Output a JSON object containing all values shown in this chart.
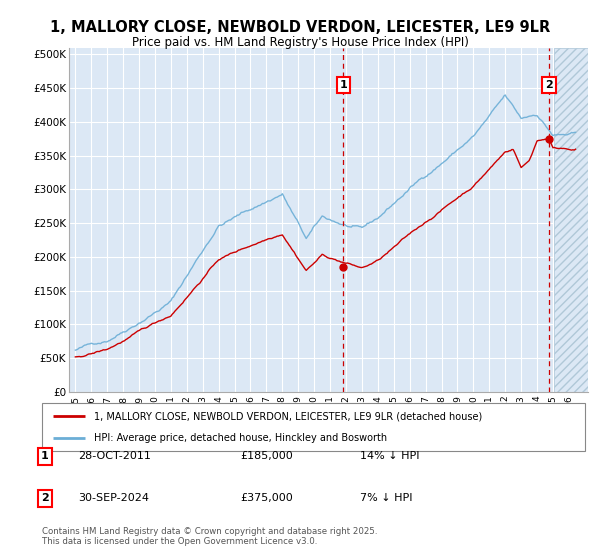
{
  "title_line1": "1, MALLORY CLOSE, NEWBOLD VERDON, LEICESTER, LE9 9LR",
  "title_line2": "Price paid vs. HM Land Registry's House Price Index (HPI)",
  "ylabel_ticks": [
    "£0",
    "£50K",
    "£100K",
    "£150K",
    "£200K",
    "£250K",
    "£300K",
    "£350K",
    "£400K",
    "£450K",
    "£500K"
  ],
  "ytick_values": [
    0,
    50000,
    100000,
    150000,
    200000,
    250000,
    300000,
    350000,
    400000,
    450000,
    500000
  ],
  "ylim": [
    0,
    510000
  ],
  "xlim_start": 1994.6,
  "xlim_end": 2027.2,
  "hpi_color": "#6baed6",
  "price_color": "#cc0000",
  "dashed_line_color": "#cc0000",
  "marker1_x": 2011.83,
  "marker1_y": 185000,
  "marker1_label": "1",
  "marker2_x": 2024.75,
  "marker2_y": 375000,
  "marker2_label": "2",
  "sale1_date": "28-OCT-2011",
  "sale1_price": "£185,000",
  "sale1_hpi": "14% ↓ HPI",
  "sale2_date": "30-SEP-2024",
  "sale2_price": "£375,000",
  "sale2_hpi": "7% ↓ HPI",
  "legend_line1": "1, MALLORY CLOSE, NEWBOLD VERDON, LEICESTER, LE9 9LR (detached house)",
  "legend_line2": "HPI: Average price, detached house, Hinckley and Bosworth",
  "footer": "Contains HM Land Registry data © Crown copyright and database right 2025.\nThis data is licensed under the Open Government Licence v3.0.",
  "plot_bg_left": "#dce8f5",
  "plot_bg_right": "#dce8f5",
  "shade_start": 2011.83,
  "hatch_start": 2025.08,
  "grid_color": "#ffffff"
}
